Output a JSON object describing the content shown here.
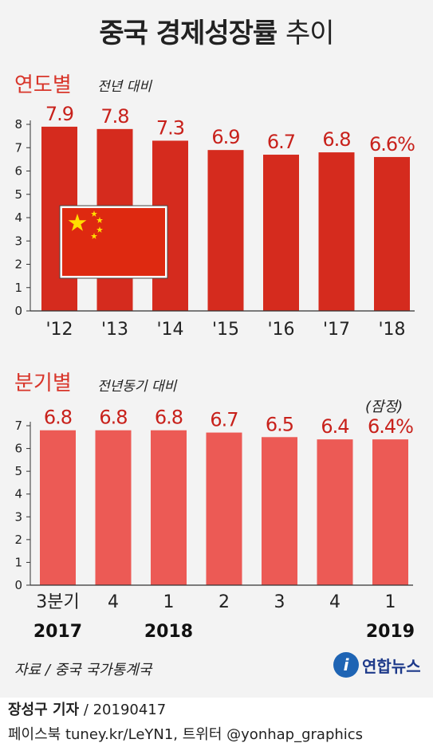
{
  "title_main": "중국 경제성장률",
  "title_tail": "추이",
  "colors": {
    "bar_annual": "#d52b1e",
    "bar_quarter": "#ec5a55",
    "label": "#c8211b",
    "accent": "#d8352a"
  },
  "chart_data": [
    {
      "type": "bar",
      "title": "연도별",
      "subtitle": "전년 대비",
      "categories": [
        "'12",
        "'13",
        "'14",
        "'15",
        "'16",
        "'17",
        "'18"
      ],
      "values": [
        7.9,
        7.8,
        7.3,
        6.9,
        6.7,
        6.8,
        6.6
      ],
      "value_labels": [
        "7.9",
        "7.8",
        "7.3",
        "6.9",
        "6.7",
        "6.8",
        "6.6%"
      ],
      "yticks": [
        0,
        1,
        2,
        3,
        4,
        5,
        6,
        7,
        8
      ],
      "ylim": [
        0,
        8
      ],
      "grid": false
    },
    {
      "type": "bar",
      "title": "분기별",
      "subtitle": "전년동기 대비",
      "categories": [
        "3분기",
        "4",
        "1",
        "2",
        "3",
        "4",
        "1"
      ],
      "year_labels": [
        "2017",
        "",
        "2018",
        "",
        "",
        "",
        "2019"
      ],
      "values": [
        6.8,
        6.8,
        6.8,
        6.7,
        6.5,
        6.4,
        6.4
      ],
      "value_labels": [
        "6.8",
        "6.8",
        "6.8",
        "6.7",
        "6.5",
        "6.4",
        "6.4%"
      ],
      "note": "(잠정)",
      "yticks": [
        0,
        1,
        2,
        3,
        4,
        5,
        6,
        7
      ],
      "ylim": [
        0,
        7
      ],
      "grid": false
    }
  ],
  "flag": {
    "icon": "china-flag-icon"
  },
  "source": "자료 / 중국 국가통계국",
  "logo_text": "연합뉴스",
  "reporter": "장성구 기자",
  "date_code": "/ 20190417",
  "social": "페이스북 tuney.kr/LeYN1, 트위터 @yonhap_graphics"
}
